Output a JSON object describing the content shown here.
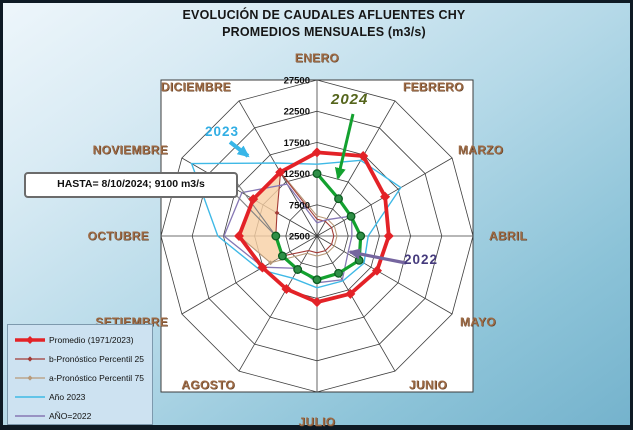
{
  "title": {
    "line1": "EVOLUCIÓN DE CAUDALES AFLUENTES CHY",
    "line2": "PROMEDIOS MENSUALES (m3/s)"
  },
  "annotations": {
    "label_2024": "2024",
    "label_2023": "2023",
    "label_2022": "2022",
    "hasta_text": "HASTA= 8/10/2024; 9100 m3/s"
  },
  "months": [
    "ENERO",
    "FEBRERO",
    "MARZO",
    "ABRIL",
    "MAYO",
    "JUNIO",
    "JULIO",
    "AGOSTO",
    "SETIEMBRE",
    "OCTUBRE",
    "NOVIEMBRE",
    "DICIEMBRE"
  ],
  "axis_ticks": [
    "2500",
    "7500",
    "12500",
    "17500",
    "22500",
    "27500"
  ],
  "legend": {
    "items": [
      {
        "label": "Promedio (1971/2023)",
        "type": "thick-diamond",
        "color": "#e32227"
      },
      {
        "label": "b-Pronóstico Percentil 25",
        "type": "thin-diamond",
        "color": "#a33b36"
      },
      {
        "label": "a-Pronóstico Percentil 75",
        "type": "thin-diamond",
        "color": "#b89a7a"
      },
      {
        "label": "Año 2023",
        "type": "plain",
        "color": "#3fb9e6"
      },
      {
        "label": "AÑO=2022",
        "type": "plain",
        "color": "#8677b4"
      }
    ]
  },
  "chart_data": {
    "type": "radar",
    "categories": [
      "ENERO",
      "FEBRERO",
      "MARZO",
      "ABRIL",
      "MAYO",
      "JUNIO",
      "JULIO",
      "AGOSTO",
      "SETIEMBRE",
      "OCTUBRE",
      "NOVIEMBRE",
      "DICIEMBRE"
    ],
    "rlim": [
      2500,
      27500
    ],
    "tick_step": 5000,
    "grid": "polygon",
    "legend_position": "bottom-left",
    "series": [
      {
        "name": "Promedio (1971/2023)",
        "color": "#e32227",
        "marker": "diamond",
        "values": [
          15900,
          17300,
          15100,
          14000,
          13600,
          13200,
          13100,
          12300,
          12600,
          15000,
          14300,
          14300
        ]
      },
      {
        "name": "b-Pronóstico Percentil 25",
        "color": "#a33b36",
        "marker": "small-diamond",
        "values": [
          5200,
          5200,
          5200,
          5200,
          5200,
          5200,
          5200,
          5200,
          8900,
          9100,
          9900,
          14200
        ]
      },
      {
        "name": "a-Pronóstico Percentil 75",
        "color": "#b89a7a",
        "marker": "small-diamond",
        "values": [
          5700,
          5700,
          5700,
          5700,
          5700,
          5700,
          5700,
          5700,
          11100,
          15000,
          14400,
          14500
        ]
      },
      {
        "name": "Año 2023",
        "color": "#3fb9e6",
        "marker": "none",
        "values": [
          14000,
          16500,
          18000,
          10700,
          11200,
          10800,
          10800,
          10300,
          13200,
          18400,
          25700,
          16000
        ]
      },
      {
        "name": "AÑO=2022",
        "color": "#8677b4",
        "marker": "none",
        "values": [
          4600,
          5500,
          8900,
          8100,
          8200,
          10600,
          10000,
          8500,
          12500,
          17400,
          16400,
          12100
        ]
      },
      {
        "name": "2024",
        "color": "#13a12f",
        "marker": "circle",
        "values": [
          12500,
          9400,
          8800,
          9500,
          10300,
          9400,
          9500,
          8700,
          8900,
          9100,
          null,
          null
        ]
      }
    ],
    "forecast_band": {
      "between": [
        "b-Pronóstico Percentil 25",
        "a-Pronóstico Percentil 75"
      ],
      "from_index": 8,
      "to_index": 11,
      "fill": "#f8cfa4",
      "note": "HASTA= 8/10/2024; 9100 m3/s"
    }
  }
}
